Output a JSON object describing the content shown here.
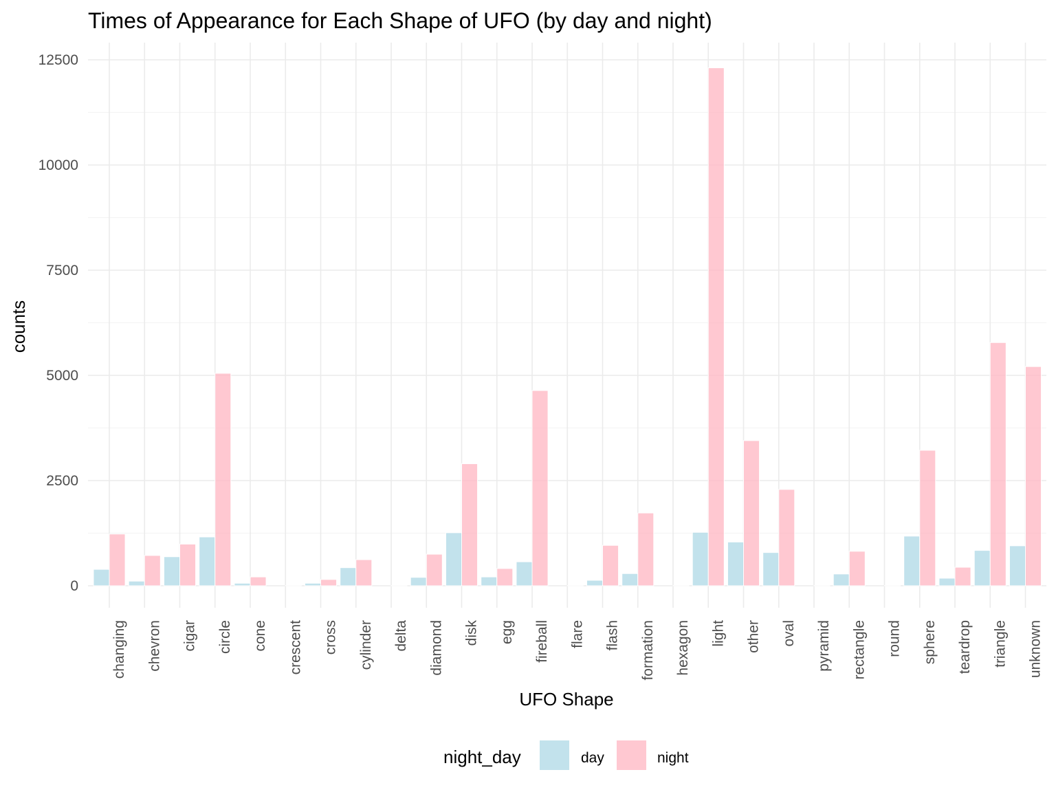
{
  "chart_data": {
    "type": "bar",
    "title": "Times of Appearance for Each Shape of UFO (by day and night)",
    "xlabel": "UFO Shape",
    "ylabel": "counts",
    "ylim": [
      0,
      12500
    ],
    "yticks": [
      0,
      2500,
      5000,
      7500,
      10000,
      12500
    ],
    "ytick_labels": [
      "0",
      "2500",
      "5000",
      "7500",
      "10000",
      "12500"
    ],
    "grid": true,
    "legend": {
      "title": "night_day",
      "position": "bottom"
    },
    "categories": [
      "changing",
      "chevron",
      "cigar",
      "circle",
      "cone",
      "crescent",
      "cross",
      "cylinder",
      "delta",
      "diamond",
      "disk",
      "egg",
      "fireball",
      "flare",
      "flash",
      "formation",
      "hexagon",
      "light",
      "other",
      "oval",
      "pyramid",
      "rectangle",
      "round",
      "sphere",
      "teardrop",
      "triangle",
      "unknown"
    ],
    "series": [
      {
        "name": "day",
        "color": "#add8e6",
        "values": [
          390,
          110,
          690,
          1160,
          60,
          0,
          60,
          430,
          0,
          200,
          1260,
          210,
          570,
          0,
          130,
          290,
          0,
          1270,
          1040,
          790,
          0,
          280,
          0,
          1180,
          180,
          840,
          950
        ]
      },
      {
        "name": "night",
        "color": "#ffb6c1",
        "values": [
          1230,
          720,
          990,
          5050,
          210,
          5,
          150,
          620,
          5,
          750,
          2900,
          410,
          4640,
          5,
          960,
          1730,
          5,
          12310,
          3450,
          2290,
          5,
          820,
          5,
          3220,
          440,
          5780,
          5210
        ]
      }
    ]
  }
}
